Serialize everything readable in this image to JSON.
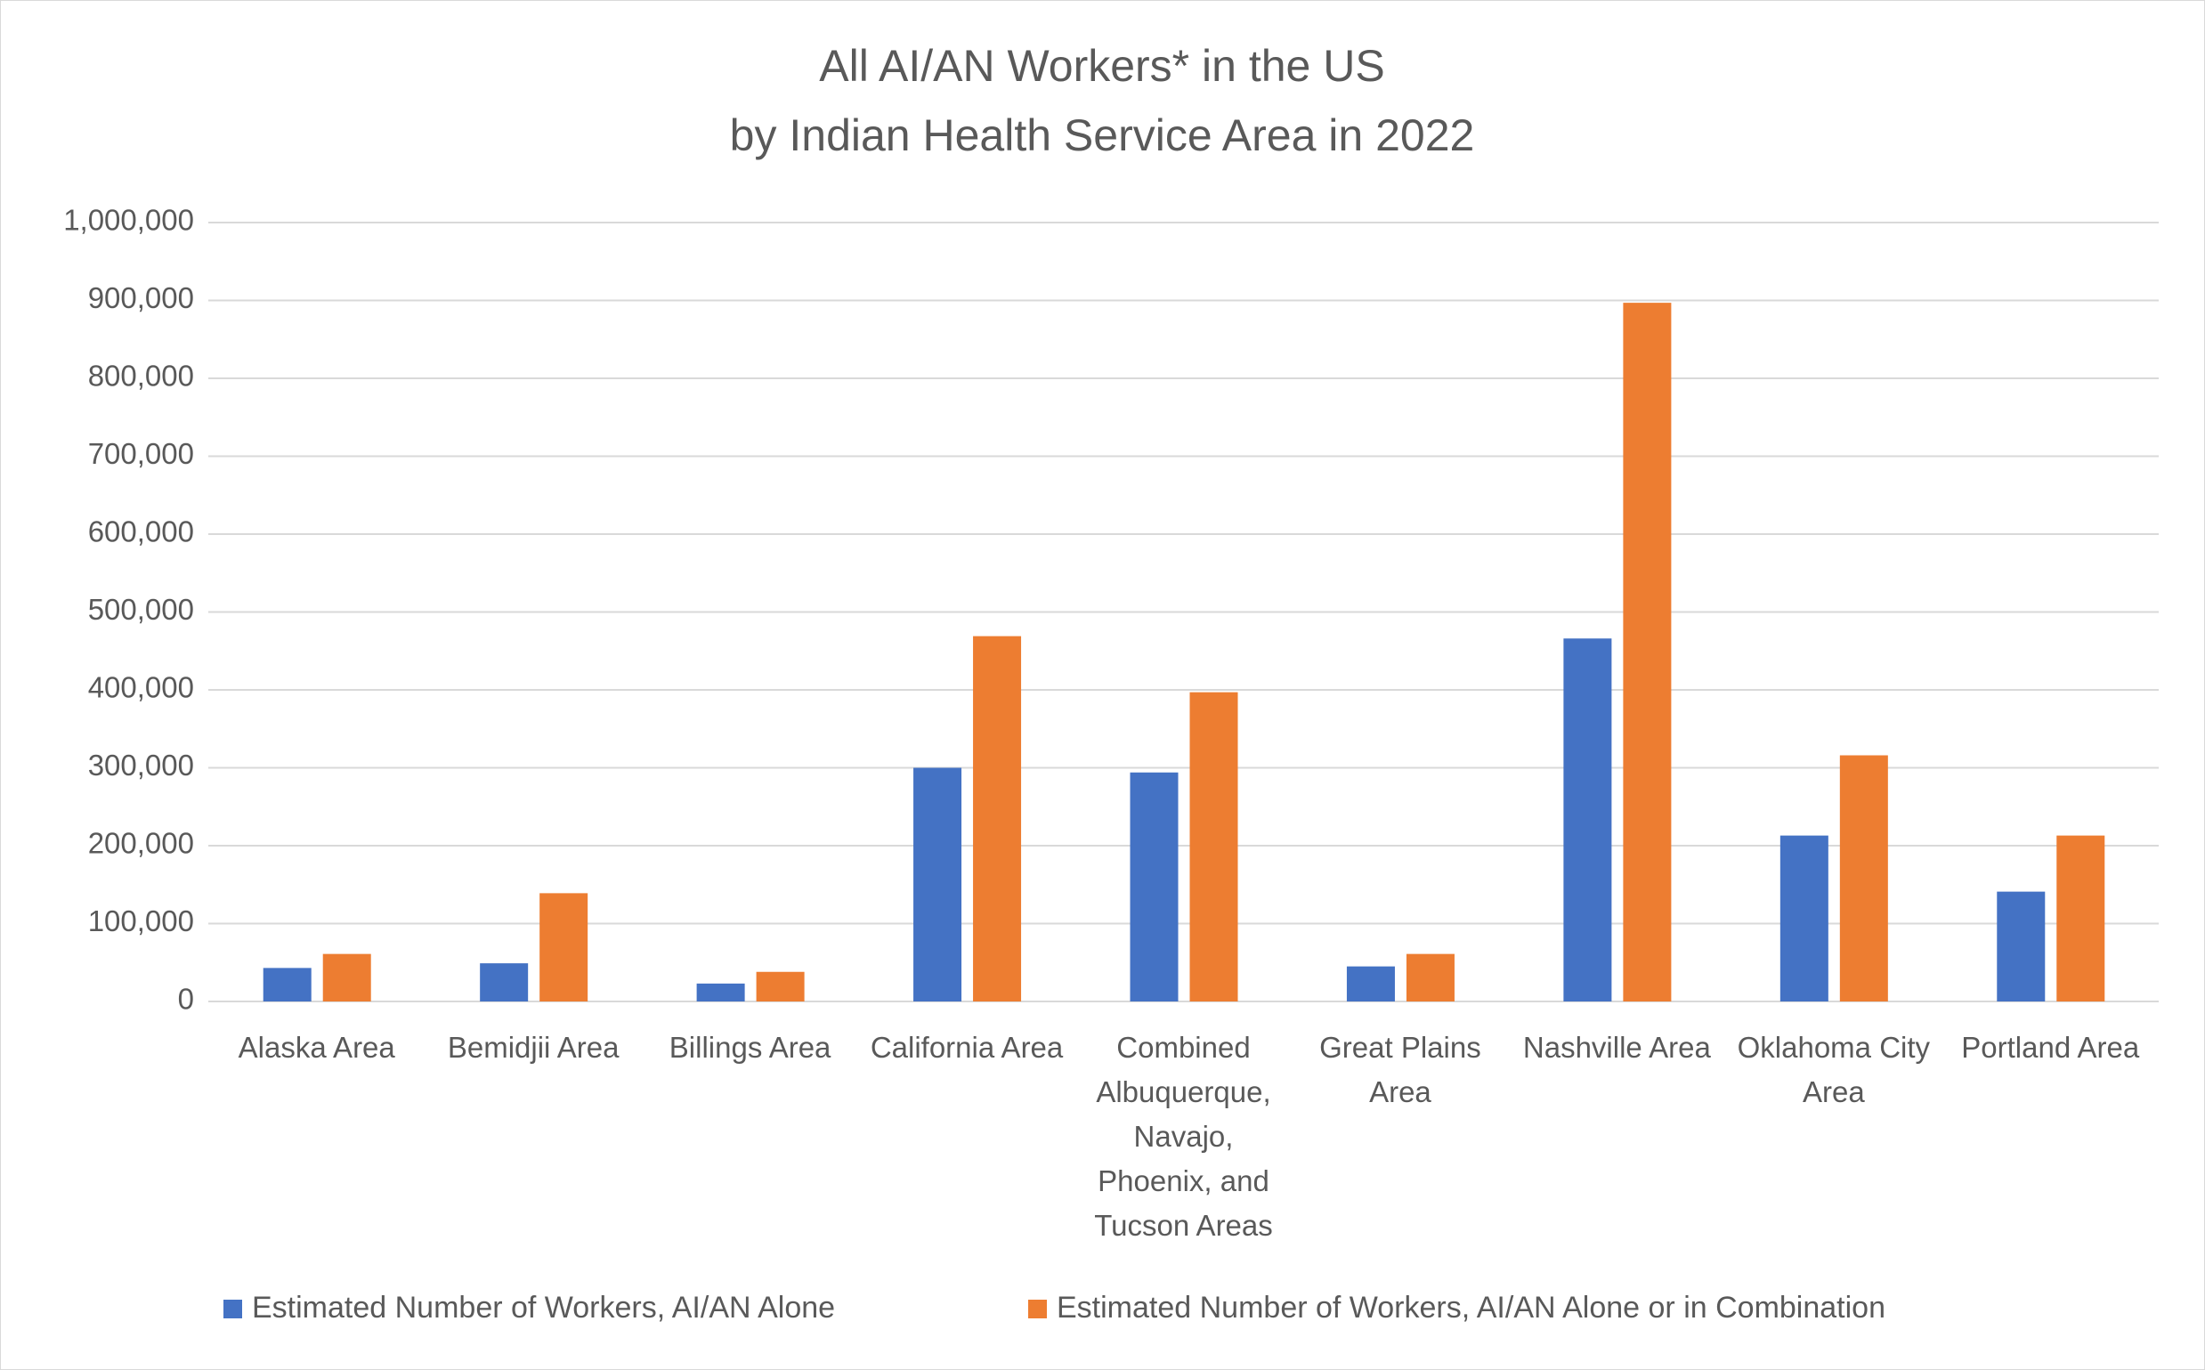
{
  "chart_data": {
    "type": "bar",
    "title": [
      "All AI/AN Workers* in the US",
      "by Indian Health Service Area in 2022"
    ],
    "categories": [
      "Alaska Area",
      "Bemidjii Area",
      "Billings Area",
      "California Area",
      "Combined Albuquerque, Navajo, Phoenix, and Tucson Areas",
      "Great Plains Area",
      "Nashville Area",
      "Oklahoma City Area",
      "Portland Area"
    ],
    "series": [
      {
        "name": "Estimated Number of Workers, AI/AN Alone",
        "color": "#4472c4",
        "values": [
          43000,
          49000,
          23000,
          300000,
          294000,
          45000,
          466000,
          213000,
          141000
        ]
      },
      {
        "name": "Estimated Number of Workers, AI/AN Alone or in Combination",
        "color": "#ed7d31",
        "values": [
          61000,
          139000,
          38000,
          469000,
          397000,
          61000,
          897000,
          316000,
          213000
        ]
      }
    ],
    "ylim": [
      0,
      1000000
    ],
    "yticks": [
      0,
      {
        "value": 100000,
        "label": "100,000"
      },
      {
        "value": 200000,
        "label": "200,000"
      },
      {
        "value": 300000,
        "label": "300,000"
      },
      {
        "value": 400000,
        "label": "400,000"
      },
      {
        "value": 500000,
        "label": "500,000"
      },
      {
        "value": 600000,
        "label": "600,000"
      },
      {
        "value": 700000,
        "label": "700,000"
      },
      {
        "value": 800000,
        "label": "800,000"
      },
      {
        "value": 900000,
        "label": "900,000"
      },
      {
        "value": 1000000,
        "label": "1,000,000"
      }
    ],
    "grid": true,
    "legend": "bottom"
  }
}
